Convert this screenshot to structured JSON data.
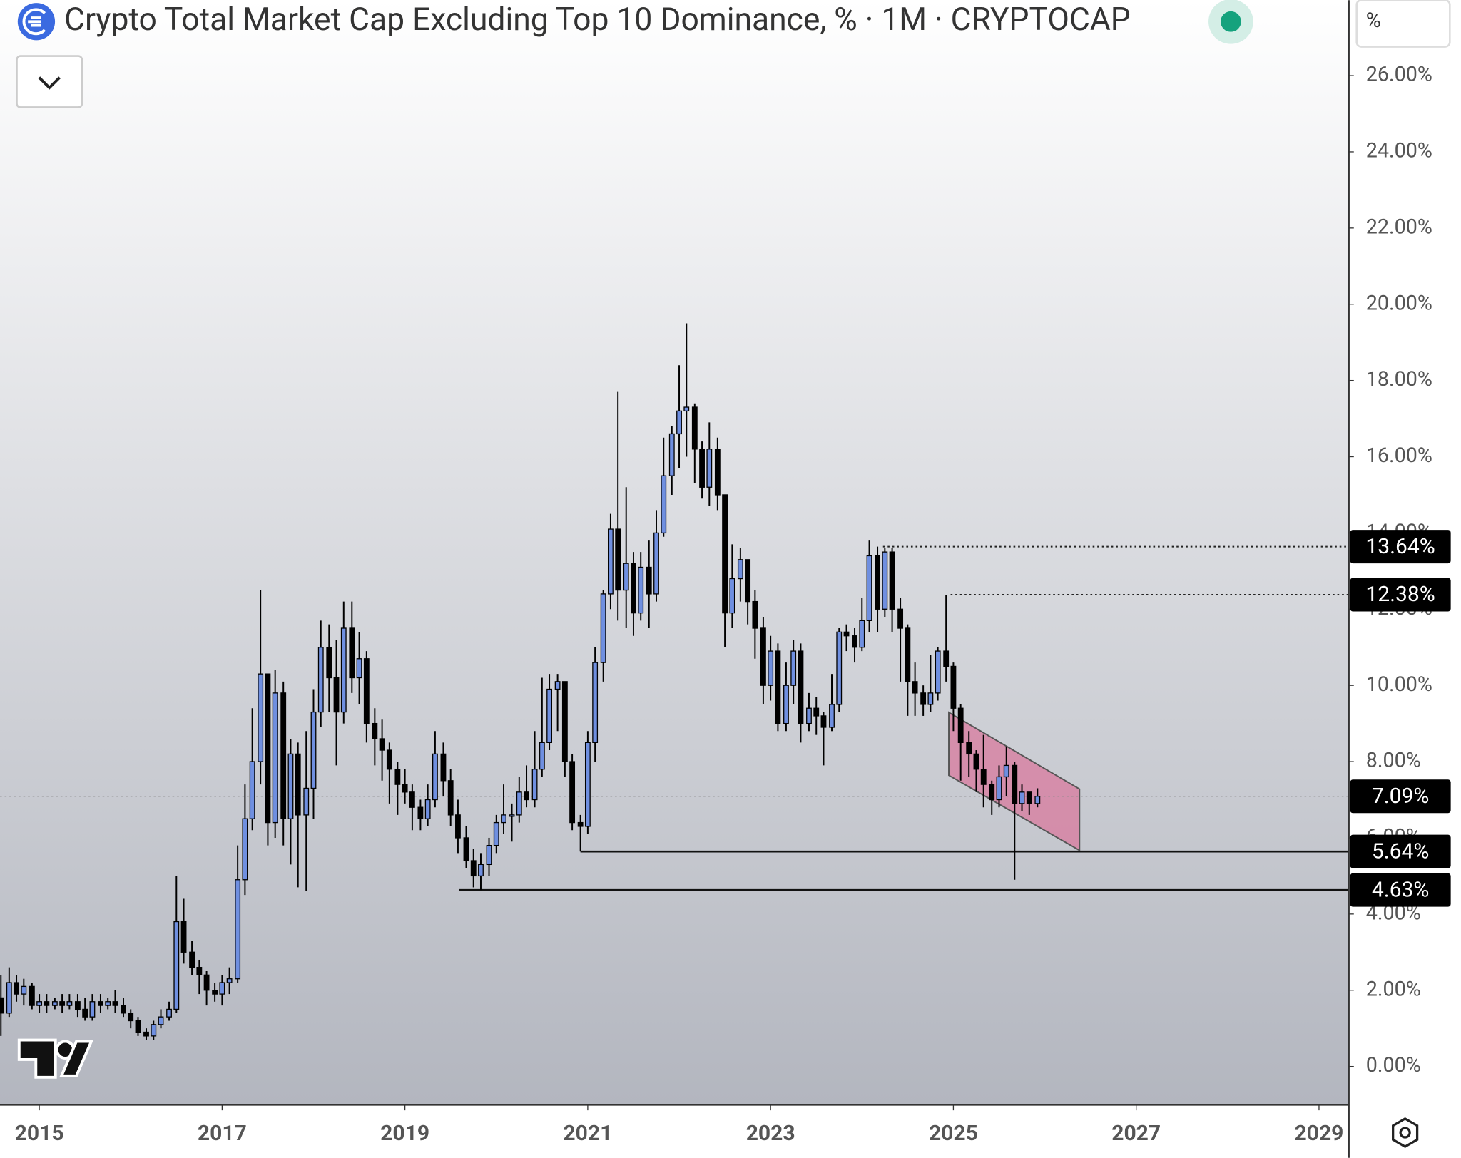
{
  "chart_data": {
    "type": "candlestick",
    "title": "Crypto Total Market Cap Excluding Top 10 Dominance, % · 1M · CRYPTOCAP",
    "y_unit": "%",
    "xlim": [
      2014.57,
      2029.32
    ],
    "ylim": [
      -0.98,
      27.98
    ],
    "xticks": [
      2015,
      2017,
      2019,
      2021,
      2023,
      2025,
      2027,
      2029
    ],
    "yticks": [
      {
        "value": 0,
        "label": "0.00%"
      },
      {
        "value": 2,
        "label": "2.00%"
      },
      {
        "value": 4,
        "label": "4.00%"
      },
      {
        "value": 6,
        "label": "6.00%"
      },
      {
        "value": 8,
        "label": "8.00%"
      },
      {
        "value": 10,
        "label": "10.00%"
      },
      {
        "value": 12,
        "label": "12.00%"
      },
      {
        "value": 14,
        "label": "14.00%"
      },
      {
        "value": 16,
        "label": "16.00%"
      },
      {
        "value": 18,
        "label": "18.00%"
      },
      {
        "value": 20,
        "label": "20.00%"
      },
      {
        "value": 22,
        "label": "22.00%"
      },
      {
        "value": 24,
        "label": "24.00%"
      },
      {
        "value": 26,
        "label": "26.00%"
      }
    ],
    "up_color": "#6f8fe0",
    "down_color": "#000000",
    "x": [
      2014.58,
      2014.67,
      2014.75,
      2014.83,
      2014.92,
      2015.0,
      2015.08,
      2015.17,
      2015.25,
      2015.33,
      2015.42,
      2015.5,
      2015.58,
      2015.67,
      2015.75,
      2015.83,
      2015.92,
      2016.0,
      2016.08,
      2016.17,
      2016.25,
      2016.33,
      2016.42,
      2016.5,
      2016.58,
      2016.67,
      2016.75,
      2016.83,
      2016.92,
      2017.0,
      2017.08,
      2017.17,
      2017.25,
      2017.33,
      2017.42,
      2017.5,
      2017.58,
      2017.67,
      2017.75,
      2017.83,
      2017.92,
      2018.0,
      2018.08,
      2018.17,
      2018.25,
      2018.33,
      2018.42,
      2018.5,
      2018.58,
      2018.67,
      2018.75,
      2018.83,
      2018.92,
      2019.0,
      2019.08,
      2019.17,
      2019.25,
      2019.33,
      2019.42,
      2019.5,
      2019.58,
      2019.67,
      2019.75,
      2019.83,
      2019.92,
      2020.0,
      2020.08,
      2020.17,
      2020.25,
      2020.33,
      2020.42,
      2020.5,
      2020.58,
      2020.67,
      2020.75,
      2020.83,
      2020.92,
      2021.0,
      2021.08,
      2021.17,
      2021.25,
      2021.33,
      2021.42,
      2021.5,
      2021.58,
      2021.67,
      2021.75,
      2021.83,
      2021.92,
      2022.0,
      2022.08,
      2022.17,
      2022.25,
      2022.33,
      2022.42,
      2022.5,
      2022.58,
      2022.67,
      2022.75,
      2022.83,
      2022.92,
      2023.0,
      2023.08,
      2023.17,
      2023.25,
      2023.33,
      2023.42,
      2023.5,
      2023.58,
      2023.67,
      2023.75,
      2023.83,
      2023.92,
      2024.0,
      2024.08,
      2024.17,
      2024.25,
      2024.33,
      2024.42,
      2024.5,
      2024.58,
      2024.67,
      2024.75,
      2024.83,
      2024.92,
      2025.0,
      2025.08,
      2025.17,
      2025.25,
      2025.33,
      2025.42,
      2025.5,
      2025.58,
      2025.67,
      2025.75,
      2025.83,
      2025.92
    ],
    "open": [
      1.8,
      1.4,
      2.2,
      1.9,
      2.1,
      1.6,
      1.7,
      1.6,
      1.7,
      1.6,
      1.7,
      1.5,
      1.3,
      1.7,
      1.6,
      1.7,
      1.6,
      1.4,
      1.2,
      0.9,
      0.8,
      1.1,
      1.3,
      1.5,
      3.8,
      3.0,
      2.6,
      2.4,
      2.0,
      1.9,
      2.2,
      2.3,
      4.9,
      6.5,
      8.0,
      10.3,
      6.4,
      9.8,
      6.5,
      8.2,
      6.6,
      7.3,
      9.3,
      11.0,
      10.2,
      9.3,
      11.5,
      10.2,
      10.7,
      9.0,
      8.6,
      8.3,
      7.8,
      7.4,
      7.2,
      6.8,
      6.5,
      7.0,
      8.2,
      7.5,
      6.6,
      6.0,
      5.4,
      5.0,
      5.3,
      5.8,
      6.4,
      6.6,
      6.6,
      7.2,
      7.0,
      7.8,
      8.5,
      9.9,
      10.1,
      8.0,
      6.4,
      6.3,
      8.5,
      10.6,
      12.4,
      14.1,
      12.5,
      13.2,
      11.9,
      13.1,
      12.4,
      14.0,
      15.5,
      16.6,
      17.2,
      17.3,
      16.2,
      15.2,
      16.2,
      15.0,
      11.9,
      12.8,
      13.3,
      12.2,
      11.5,
      10.0,
      10.9,
      9.0,
      10.0,
      10.9,
      9.0,
      9.4,
      9.2,
      8.9,
      9.5,
      11.4,
      11.3,
      11.0,
      11.7,
      13.4,
      12.0,
      13.5,
      12.0,
      11.5,
      10.1,
      9.8,
      9.5,
      9.8,
      10.9,
      10.5,
      9.4,
      8.5,
      8.2,
      7.8,
      7.4,
      7.0,
      7.6,
      7.9,
      6.9,
      7.2,
      6.9
    ],
    "high": [
      2.4,
      2.6,
      2.4,
      2.3,
      2.2,
      1.9,
      1.9,
      1.8,
      1.9,
      1.9,
      1.9,
      1.8,
      1.9,
      1.9,
      1.8,
      2.0,
      1.8,
      1.5,
      1.3,
      1.0,
      1.2,
      1.5,
      1.7,
      5.0,
      4.4,
      3.3,
      2.8,
      2.5,
      2.2,
      2.4,
      2.6,
      5.8,
      7.4,
      9.4,
      12.5,
      10.3,
      10.4,
      10.1,
      8.6,
      8.5,
      8.8,
      9.9,
      11.7,
      11.6,
      11.2,
      12.2,
      12.2,
      11.4,
      10.9,
      9.4,
      9.1,
      8.5,
      8.0,
      7.8,
      7.4,
      7.0,
      7.4,
      8.8,
      8.5,
      7.8,
      7.0,
      6.3,
      5.7,
      5.6,
      6.0,
      6.6,
      7.4,
      6.9,
      7.6,
      7.9,
      8.8,
      10.2,
      10.3,
      10.3,
      10.1,
      8.2,
      6.6,
      8.8,
      11.0,
      12.5,
      14.5,
      17.7,
      15.2,
      13.5,
      13.5,
      13.8,
      14.6,
      16.5,
      16.8,
      18.4,
      19.5,
      17.4,
      16.4,
      16.9,
      16.5,
      15.0,
      13.7,
      13.6,
      13.3,
      12.5,
      11.8,
      11.3,
      11.1,
      10.6,
      11.2,
      11.1,
      9.8,
      9.7,
      9.3,
      10.3,
      11.5,
      11.6,
      11.5,
      12.3,
      13.8,
      13.64,
      13.6,
      13.6,
      12.3,
      11.6,
      10.6,
      10.0,
      10.8,
      11.0,
      12.38,
      10.6,
      9.5,
      8.8,
      8.3,
      8.7,
      7.5,
      7.9,
      8.4,
      8.0,
      7.4,
      7.2,
      7.3
    ],
    "low": [
      0.8,
      1.3,
      1.7,
      1.6,
      1.5,
      1.4,
      1.4,
      1.5,
      1.4,
      1.5,
      1.3,
      1.2,
      1.2,
      1.4,
      1.5,
      1.4,
      1.3,
      1.0,
      0.8,
      0.7,
      0.7,
      1.0,
      1.2,
      1.4,
      2.7,
      2.4,
      1.9,
      1.6,
      1.7,
      1.6,
      1.9,
      2.2,
      4.5,
      6.2,
      7.4,
      5.8,
      6.0,
      5.8,
      5.3,
      4.7,
      4.6,
      6.5,
      8.9,
      9.3,
      7.9,
      9.0,
      9.8,
      9.5,
      8.5,
      7.9,
      7.5,
      6.9,
      6.6,
      6.9,
      6.2,
      6.2,
      6.3,
      6.8,
      7.1,
      6.3,
      5.6,
      5.2,
      4.7,
      4.63,
      5.0,
      5.6,
      6.1,
      5.9,
      6.4,
      6.8,
      6.8,
      7.6,
      8.3,
      8.8,
      7.6,
      6.2,
      5.64,
      6.1,
      8.0,
      10.1,
      12.0,
      11.7,
      11.5,
      11.3,
      11.7,
      11.5,
      12.2,
      13.9,
      15.0,
      15.7,
      16.0,
      15.3,
      14.9,
      14.7,
      14.6,
      11.0,
      11.5,
      12.2,
      11.6,
      10.7,
      9.5,
      9.6,
      8.8,
      8.8,
      9.5,
      8.5,
      8.8,
      8.7,
      7.9,
      8.8,
      9.3,
      10.9,
      10.6,
      10.9,
      11.4,
      11.4,
      11.8,
      11.4,
      10.1,
      9.2,
      9.2,
      9.2,
      9.3,
      9.6,
      10.1,
      8.8,
      7.5,
      7.6,
      7.2,
      6.8,
      6.6,
      6.8,
      7.1,
      4.9,
      6.7,
      6.6,
      6.8
    ],
    "close": [
      1.4,
      2.2,
      1.9,
      2.1,
      1.6,
      1.7,
      1.6,
      1.7,
      1.6,
      1.7,
      1.5,
      1.3,
      1.7,
      1.6,
      1.7,
      1.6,
      1.4,
      1.2,
      0.9,
      0.8,
      1.1,
      1.3,
      1.5,
      3.8,
      3.0,
      2.6,
      2.4,
      2.0,
      1.9,
      2.2,
      2.3,
      4.9,
      6.5,
      8.0,
      10.3,
      6.4,
      9.8,
      6.5,
      8.2,
      6.6,
      7.3,
      9.3,
      11.0,
      10.2,
      9.3,
      11.5,
      10.2,
      10.7,
      9.0,
      8.6,
      8.3,
      7.8,
      7.4,
      7.2,
      6.8,
      6.5,
      7.0,
      8.2,
      7.5,
      6.6,
      6.0,
      5.4,
      5.0,
      5.3,
      5.8,
      6.4,
      6.6,
      6.6,
      7.2,
      7.0,
      7.8,
      8.5,
      9.9,
      10.1,
      8.0,
      6.4,
      6.3,
      8.5,
      10.6,
      12.4,
      14.1,
      12.5,
      13.2,
      11.9,
      13.1,
      12.4,
      14.0,
      15.5,
      16.6,
      17.2,
      17.3,
      16.2,
      15.2,
      16.2,
      15.0,
      11.9,
      12.8,
      13.3,
      12.2,
      11.5,
      10.0,
      10.9,
      9.0,
      10.0,
      10.9,
      9.0,
      9.4,
      9.2,
      8.9,
      9.5,
      11.4,
      11.3,
      11.0,
      11.7,
      13.4,
      12.0,
      13.5,
      12.0,
      11.5,
      10.1,
      9.8,
      9.5,
      9.8,
      10.9,
      10.5,
      9.4,
      8.5,
      8.2,
      7.8,
      7.4,
      7.0,
      7.6,
      7.9,
      6.9,
      7.2,
      6.9,
      7.09
    ],
    "price_lines": [
      {
        "value": 13.64,
        "label": "13.64%",
        "start": 2024.23,
        "style": "dotted"
      },
      {
        "value": 12.38,
        "label": "12.38%",
        "start": 2024.97,
        "style": "dotted"
      },
      {
        "value": 7.09,
        "label": "7.09%",
        "style": "current"
      },
      {
        "value": 5.64,
        "label": "5.64%",
        "start": 2020.92,
        "style": "solid"
      },
      {
        "value": 4.63,
        "label": "4.63%",
        "start": 2019.59,
        "style": "solid"
      }
    ],
    "channel": {
      "x": [
        2024.95,
        2026.38
      ],
      "upper": [
        9.29,
        7.28
      ],
      "lower": [
        7.64,
        5.67
      ],
      "color": "#d87a9e"
    }
  }
}
